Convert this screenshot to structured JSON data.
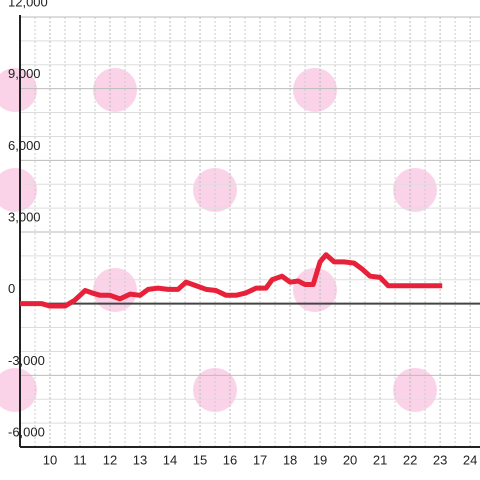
{
  "chart_data": {
    "type": "line",
    "x": [
      9,
      9.73,
      10,
      10.5,
      10.83,
      11.17,
      11.4,
      11.67,
      12,
      12.33,
      12.67,
      13,
      13.27,
      13.6,
      13.93,
      14.27,
      14.53,
      14.87,
      15.2,
      15.53,
      15.87,
      16.2,
      16.53,
      16.87,
      17.2,
      17.4,
      17.73,
      18,
      18.27,
      18.5,
      18.77,
      19,
      19.2,
      19.47,
      19.8,
      20.13,
      20.4,
      20.67,
      21,
      21.27,
      21.67,
      23.07
    ],
    "series": [
      {
        "color": "#e8213a",
        "values": [
          0,
          0,
          -100,
          -100,
          150,
          550,
          450,
          350,
          350,
          200,
          400,
          350,
          600,
          650,
          600,
          600,
          900,
          750,
          600,
          550,
          350,
          350,
          450,
          650,
          650,
          1000,
          1150,
          900,
          950,
          800,
          800,
          1750,
          2050,
          1750,
          1750,
          1700,
          1450,
          1150,
          1100,
          750,
          750,
          750
        ]
      }
    ],
    "xlim": [
      9,
      24.33
    ],
    "xticks": [
      10,
      11,
      12,
      13,
      14,
      15,
      16,
      17,
      18,
      19,
      20,
      21,
      22,
      23,
      24
    ],
    "ylim": [
      -6000,
      12000
    ],
    "yticks": [
      {
        "value": -6000,
        "label": "-6,000"
      },
      {
        "value": -3000,
        "label": "-3,000"
      },
      0,
      {
        "value": 3000,
        "label": "3,000"
      },
      {
        "value": 6000,
        "label": "6,000"
      },
      {
        "value": 9000,
        "label": "9,000"
      },
      {
        "value": 12000,
        "label": "12,000"
      }
    ],
    "grid": true
  }
}
